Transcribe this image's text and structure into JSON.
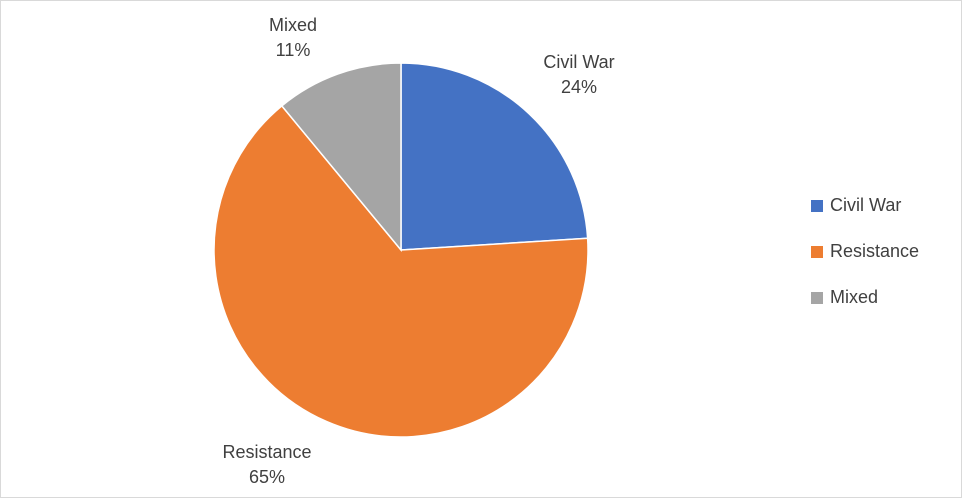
{
  "chart_data": {
    "type": "pie",
    "title": "",
    "slices": [
      {
        "label": "Civil War",
        "value": 24,
        "value_label": "24%",
        "color": "#4472c4"
      },
      {
        "label": "Resistance",
        "value": 65,
        "value_label": "65%",
        "color": "#ed7d31"
      },
      {
        "label": "Mixed",
        "value": 11,
        "value_label": "11%",
        "color": "#a5a5a5"
      }
    ],
    "legend_position": "right",
    "start_angle": "12 o'clock",
    "direction": "clockwise"
  }
}
